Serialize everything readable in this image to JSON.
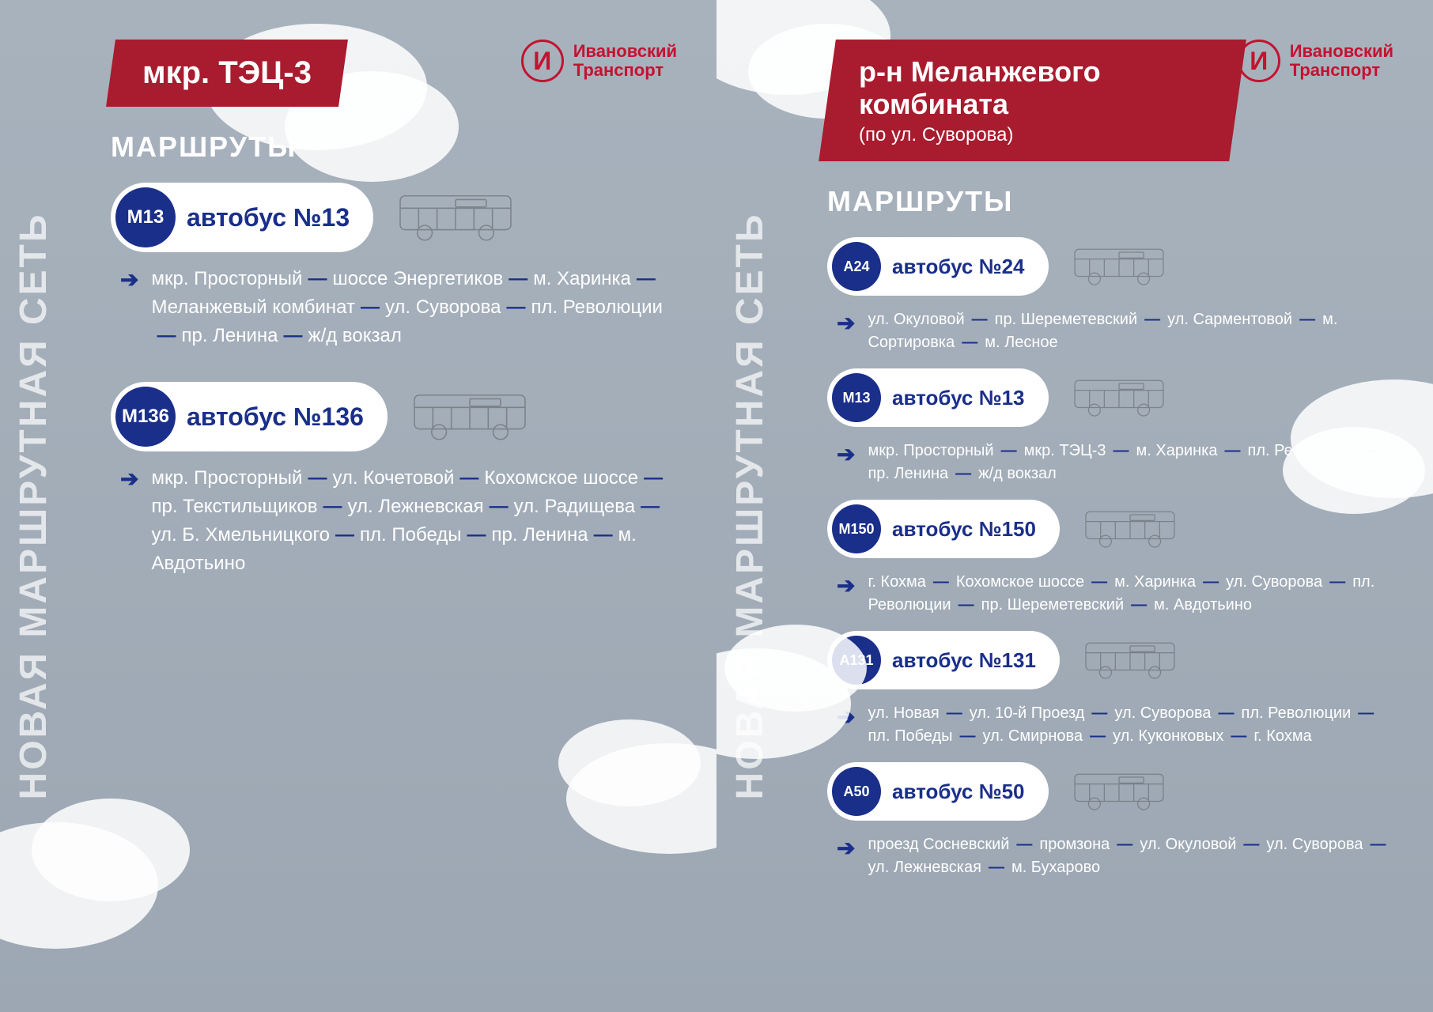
{
  "global": {
    "vertical_title": "НОВАЯ МАРШРУТНАЯ СЕТЬ",
    "brand_name": "Ивановский\nТранспорт",
    "brand_monogram": "И",
    "section_label": "МАРШРУТЫ",
    "colors": {
      "background": "#a8b2bd",
      "title_bg": "#a91b2e",
      "brand": "#c41230",
      "accent": "#1a2f8a",
      "text_light": "#ffffff"
    }
  },
  "panels": [
    {
      "title": "мкр. ТЭЦ-3",
      "subtitle": "",
      "routes": [
        {
          "code": "М13",
          "label": "автобус №13",
          "stops": [
            "мкр. Просторный",
            "шоссе Энергетиков",
            "м. Харинка",
            "Меланжевый комбинат",
            "ул. Суворова",
            "пл. Революции",
            "пр. Ленина",
            "ж/д вокзал"
          ]
        },
        {
          "code": "М136",
          "label": "автобус №136",
          "stops": [
            "мкр. Просторный",
            "ул. Кочетовой",
            "Кохомское шоссе",
            "пр. Текстильщиков",
            "ул. Лежневская",
            "ул. Радищева",
            "ул. Б. Хмельницкого",
            "пл. Победы",
            "пр. Ленина",
            "м. Авдотьино"
          ]
        }
      ]
    },
    {
      "title": "р-н Меланжевого комбината",
      "subtitle": "(по ул. Суворова)",
      "routes": [
        {
          "code": "А24",
          "label": "автобус №24",
          "stops": [
            "ул. Окуловой",
            "пр. Шереметевский",
            "ул. Сарментовой",
            "м. Сортировка",
            "м. Лесное"
          ]
        },
        {
          "code": "М13",
          "label": "автобус №13",
          "stops": [
            "мкр. Просторный",
            "мкр. ТЭЦ-3",
            "м. Харинка",
            "пл. Революции",
            "пр. Ленина",
            "ж/д вокзал"
          ]
        },
        {
          "code": "М150",
          "label": "автобус №150",
          "stops": [
            "г. Кохма",
            "Кохомское шоссе",
            "м. Харинка",
            "ул. Суворова",
            "пл. Революции",
            "пр. Шереметевский",
            "м. Авдотьино"
          ]
        },
        {
          "code": "А131",
          "label": "автобус №131",
          "stops": [
            "ул. Новая",
            "ул. 10-й Проезд",
            "ул. Суворова",
            "пл. Революции",
            "пл. Победы",
            "ул. Смирнова",
            "ул. Куконковых",
            "г. Кохма"
          ]
        },
        {
          "code": "А50",
          "label": "автобус №50",
          "stops": [
            "проезд Сосневский",
            "промзона",
            "ул. Окуловой",
            "ул. Суворова",
            "ул. Лежневская",
            "м. Бухарово"
          ]
        }
      ]
    }
  ]
}
